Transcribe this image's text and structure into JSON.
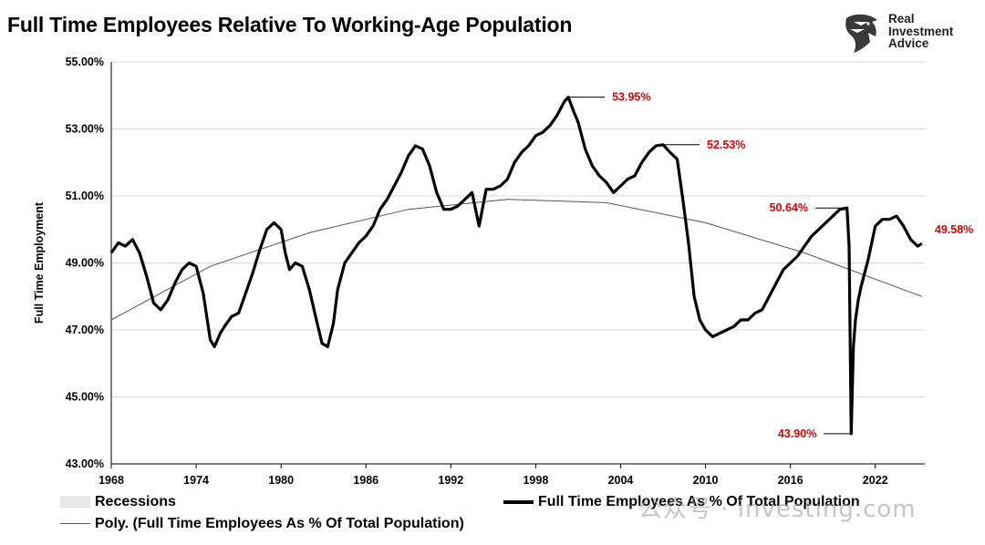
{
  "header": {
    "title": "Full Time Employees Relative To Working-Age Population",
    "brand_lines": [
      "Real",
      "Investment",
      "Advice"
    ],
    "brand_icon": "eagle-head-logo"
  },
  "legend": {
    "recessions": "Recessions",
    "series_main": "Full Time Employees As % Of Total Population",
    "series_poly": "Poly. (Full Time Employees As % Of Total Population)"
  },
  "watermark": "公众号 · investing.com",
  "colors": {
    "line": "#000000",
    "annotation": "#e00000",
    "trend": "#555555",
    "grid": "#d9d9d9",
    "recession": "#e8e8e8"
  },
  "chart_data": {
    "type": "line",
    "title": "Full Time Employees Relative To Working-Age Population",
    "ylabel": "Full Time Employment",
    "xlabel": "",
    "ylim": [
      43,
      55
    ],
    "xlim": [
      1968,
      2025.5
    ],
    "y_ticks": [
      "43.00%",
      "45.00%",
      "47.00%",
      "49.00%",
      "51.00%",
      "53.00%",
      "55.00%"
    ],
    "y_tick_values": [
      43,
      45,
      47,
      49,
      51,
      53,
      55
    ],
    "x_ticks": [
      "1968",
      "1974",
      "1980",
      "1986",
      "1992",
      "1998",
      "2004",
      "2010",
      "2016",
      "2022"
    ],
    "x_tick_values": [
      1968,
      1974,
      1980,
      1986,
      1992,
      1998,
      2004,
      2010,
      2016,
      2022
    ],
    "grid": "horizontal",
    "series": [
      {
        "name": "Full Time Employees As % Of Total Population",
        "x": [
          1968.0,
          1968.5,
          1969.0,
          1969.5,
          1970.0,
          1970.5,
          1971.0,
          1971.5,
          1972.0,
          1972.5,
          1973.0,
          1973.5,
          1974.0,
          1974.5,
          1975.0,
          1975.3,
          1975.7,
          1976.0,
          1976.5,
          1977.0,
          1977.5,
          1978.0,
          1978.5,
          1979.0,
          1979.5,
          1980.0,
          1980.3,
          1980.6,
          1981.0,
          1981.5,
          1982.0,
          1982.5,
          1982.9,
          1983.3,
          1983.7,
          1984.0,
          1984.5,
          1985.0,
          1985.5,
          1986.0,
          1986.5,
          1987.0,
          1987.5,
          1988.0,
          1988.5,
          1989.0,
          1989.5,
          1990.0,
          1990.5,
          1991.0,
          1991.5,
          1992.0,
          1992.5,
          1993.0,
          1993.5,
          1994.0,
          1994.5,
          1995.0,
          1995.5,
          1996.0,
          1996.5,
          1997.0,
          1997.5,
          1998.0,
          1998.5,
          1999.0,
          1999.5,
          2000.0,
          2000.3,
          2000.7,
          2001.0,
          2001.5,
          2002.0,
          2002.5,
          2003.0,
          2003.5,
          2004.0,
          2004.5,
          2005.0,
          2005.5,
          2006.0,
          2006.5,
          2007.0,
          2007.5,
          2008.0,
          2008.4,
          2008.8,
          2009.2,
          2009.6,
          2010.0,
          2010.5,
          2011.0,
          2011.5,
          2012.0,
          2012.5,
          2013.0,
          2013.5,
          2014.0,
          2014.5,
          2015.0,
          2015.5,
          2016.0,
          2016.5,
          2017.0,
          2017.5,
          2018.0,
          2018.5,
          2019.0,
          2019.5,
          2020.0,
          2020.15,
          2020.3,
          2020.45,
          2020.6,
          2020.8,
          2021.0,
          2021.5,
          2022.0,
          2022.5,
          2023.0,
          2023.5,
          2024.0,
          2024.5,
          2025.0,
          2025.3
        ],
        "values": [
          49.3,
          49.6,
          49.5,
          49.7,
          49.3,
          48.6,
          47.8,
          47.6,
          47.9,
          48.4,
          48.8,
          49.0,
          48.9,
          48.1,
          46.7,
          46.5,
          46.9,
          47.1,
          47.4,
          47.5,
          48.1,
          48.7,
          49.4,
          50.0,
          50.2,
          50.0,
          49.3,
          48.8,
          49.0,
          48.9,
          48.2,
          47.3,
          46.6,
          46.5,
          47.2,
          48.2,
          49.0,
          49.3,
          49.6,
          49.8,
          50.1,
          50.6,
          50.9,
          51.3,
          51.7,
          52.2,
          52.5,
          52.4,
          51.9,
          51.1,
          50.6,
          50.6,
          50.7,
          50.9,
          51.1,
          50.1,
          51.2,
          51.2,
          51.3,
          51.5,
          52.0,
          52.3,
          52.5,
          52.8,
          52.9,
          53.1,
          53.4,
          53.8,
          53.95,
          53.5,
          53.2,
          52.4,
          51.9,
          51.6,
          51.4,
          51.1,
          51.3,
          51.5,
          51.6,
          52.0,
          52.3,
          52.5,
          52.53,
          52.3,
          52.1,
          50.9,
          49.6,
          48.0,
          47.3,
          47.0,
          46.8,
          46.9,
          47.0,
          47.1,
          47.3,
          47.3,
          47.5,
          47.6,
          48.0,
          48.4,
          48.8,
          49.0,
          49.2,
          49.5,
          49.8,
          50.0,
          50.2,
          50.4,
          50.6,
          50.64,
          49.5,
          43.9,
          46.5,
          47.3,
          47.9,
          48.3,
          49.1,
          50.1,
          50.3,
          50.3,
          50.4,
          50.1,
          49.7,
          49.5,
          49.58
        ]
      },
      {
        "name": "Poly. (Full Time Employees As % Of Total Population)",
        "x": [
          1968,
          1975,
          1982,
          1989,
          1996,
          2003,
          2010,
          2017,
          2025.3
        ],
        "values": [
          47.3,
          48.9,
          49.9,
          50.6,
          50.9,
          50.8,
          50.2,
          49.3,
          48.0
        ]
      }
    ],
    "annotations": [
      {
        "text": "53.95%",
        "x": 2000.3,
        "y": 53.95
      },
      {
        "text": "52.53%",
        "x": 2007.0,
        "y": 52.53
      },
      {
        "text": "50.64%",
        "x": 2019.7,
        "y": 50.64
      },
      {
        "text": "43.90%",
        "x": 2020.3,
        "y": 43.9
      },
      {
        "text": "49.58%",
        "x": 2025.3,
        "y": 49.58
      }
    ]
  }
}
